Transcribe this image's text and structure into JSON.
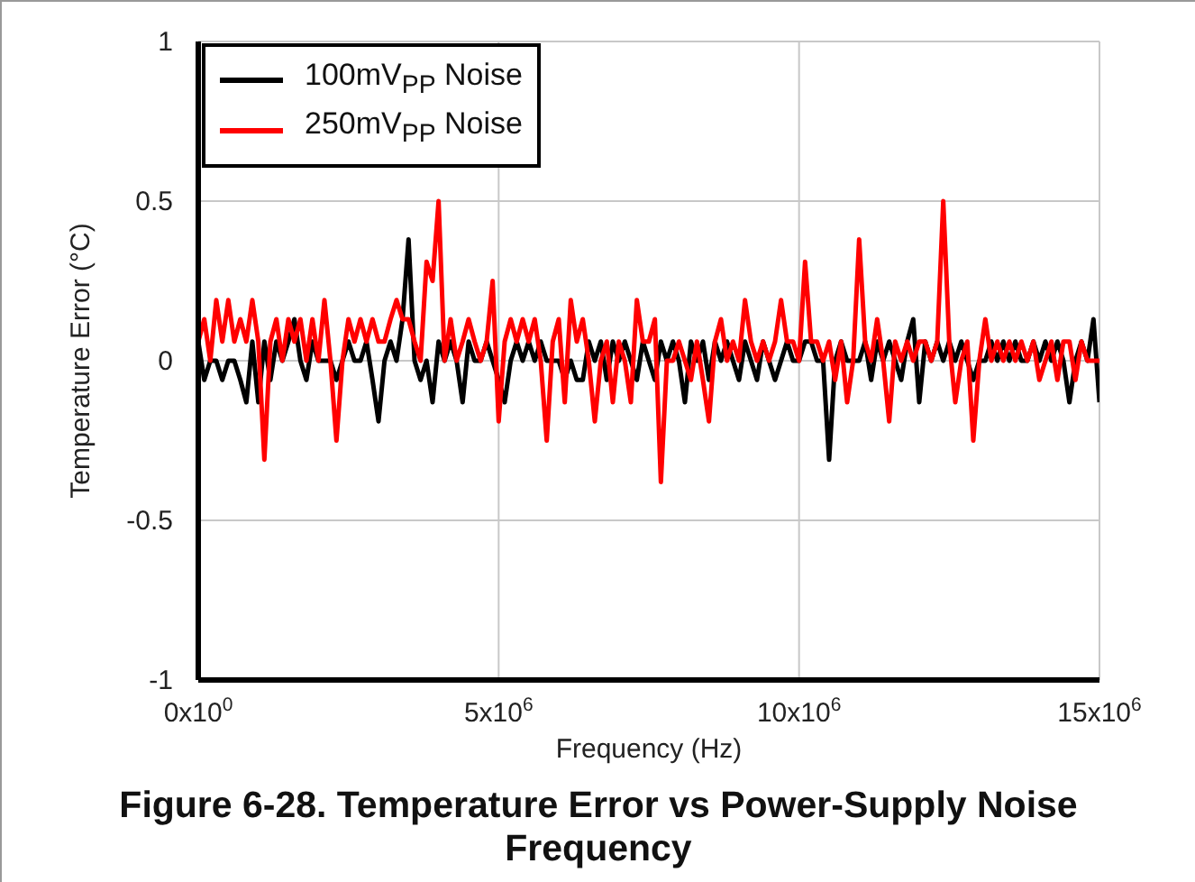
{
  "chart_data": {
    "type": "line",
    "title": "Figure 6-28. Temperature Error vs Power-Supply Noise Frequency",
    "xlabel": "Frequency (Hz)",
    "ylabel": "Temperature Error (°C)",
    "x": [
      0,
      100000,
      200000,
      300000,
      400000,
      500000,
      600000,
      700000,
      800000,
      900000,
      1000000,
      1100000,
      1200000,
      1300000,
      1400000,
      1500000,
      1600000,
      1700000,
      1800000,
      1900000,
      2000000,
      2100000,
      2200000,
      2300000,
      2400000,
      2500000,
      2600000,
      2700000,
      2800000,
      2900000,
      3000000,
      3100000,
      3200000,
      3300000,
      3400000,
      3500000,
      3600000,
      3700000,
      3800000,
      3900000,
      4000000,
      4100000,
      4200000,
      4300000,
      4400000,
      4500000,
      4600000,
      4700000,
      4800000,
      4900000,
      5000000,
      5100000,
      5200000,
      5300000,
      5400000,
      5500000,
      5600000,
      5700000,
      5800000,
      5900000,
      6000000,
      6100000,
      6200000,
      6300000,
      6400000,
      6500000,
      6600000,
      6700000,
      6800000,
      6900000,
      7000000,
      7100000,
      7200000,
      7300000,
      7400000,
      7500000,
      7600000,
      7700000,
      7800000,
      7900000,
      8000000,
      8100000,
      8200000,
      8300000,
      8400000,
      8500000,
      8600000,
      8700000,
      8800000,
      8900000,
      9000000,
      9100000,
      9200000,
      9300000,
      9400000,
      9500000,
      9600000,
      9700000,
      9800000,
      9900000,
      10000000,
      10100000,
      10200000,
      10300000,
      10400000,
      10500000,
      10600000,
      10700000,
      10800000,
      10900000,
      11000000,
      11100000,
      11200000,
      11300000,
      11400000,
      11500000,
      11600000,
      11700000,
      11800000,
      11900000,
      12000000,
      12100000,
      12200000,
      12300000,
      12400000,
      12500000,
      12600000,
      12700000,
      12800000,
      12900000,
      13000000,
      13100000,
      13200000,
      13300000,
      13400000,
      13500000,
      13600000,
      13700000,
      13800000,
      13900000,
      14000000,
      14100000,
      14200000,
      14300000,
      14400000,
      14500000,
      14600000,
      14700000,
      14800000,
      14900000,
      15000000
    ],
    "series": [
      {
        "name": "100mV$_{PP}$ Noise",
        "color": "#000000",
        "values": [
          0.06,
          -0.06,
          0,
          0,
          -0.06,
          0,
          0,
          -0.06,
          -0.13,
          0.06,
          -0.13,
          0.06,
          -0.06,
          0.06,
          0,
          0.06,
          0.13,
          0,
          -0.06,
          0.06,
          0,
          0,
          0,
          -0.06,
          0,
          0.06,
          0,
          0,
          0.06,
          -0.06,
          -0.19,
          0,
          0.06,
          0,
          0.13,
          0.38,
          0,
          -0.06,
          0,
          -0.13,
          0.06,
          0,
          0.06,
          0,
          -0.13,
          0.06,
          0,
          0,
          0.06,
          0,
          -0.06,
          -0.13,
          0,
          0.06,
          0,
          0.06,
          0,
          0.06,
          0,
          0,
          0,
          -0.06,
          0,
          -0.06,
          -0.06,
          0.06,
          0,
          0.06,
          -0.06,
          0.06,
          0,
          0.06,
          0,
          -0.06,
          0.06,
          0,
          -0.06,
          0.06,
          0,
          0.06,
          0,
          -0.13,
          0.06,
          0,
          0.06,
          -0.06,
          0.06,
          0,
          0.06,
          0,
          -0.06,
          0.06,
          0,
          -0.06,
          0.06,
          0,
          -0.06,
          0,
          0.06,
          0,
          0,
          0.06,
          0.06,
          0,
          0,
          -0.31,
          0,
          0.06,
          0,
          0,
          0,
          0.06,
          -0.06,
          0.06,
          0,
          0.06,
          0,
          -0.06,
          0.06,
          0.13,
          -0.13,
          0.06,
          0,
          0.06,
          0,
          0.06,
          0,
          0.06,
          0,
          -0.06,
          0,
          0,
          0.06,
          0,
          0.06,
          0,
          0.06,
          0,
          0,
          0.06,
          0,
          0.06,
          0,
          0.06,
          0,
          -0.13,
          0,
          0.06,
          0,
          0.13,
          -0.13
        ]
      },
      {
        "name": "250mV$_{PP}$ Noise",
        "color": "#ff0000",
        "values": [
          0.06,
          0.13,
          0,
          0.19,
          0.06,
          0.19,
          0.06,
          0.13,
          0.06,
          0.19,
          0.06,
          -0.31,
          0.06,
          0.13,
          0,
          0.13,
          0.06,
          0.13,
          0,
          0.13,
          0,
          0.19,
          0,
          -0.25,
          0,
          0.13,
          0.06,
          0.13,
          0.06,
          0.13,
          0.06,
          0.06,
          0.13,
          0.19,
          0.13,
          0.13,
          0.06,
          0,
          0.31,
          0.25,
          0.5,
          0,
          0.13,
          0,
          0.06,
          0.13,
          0.06,
          0,
          0.06,
          0.25,
          -0.19,
          0.06,
          0.13,
          0.06,
          0.13,
          0.06,
          0.13,
          0,
          -0.25,
          0.06,
          0.13,
          -0.13,
          0.19,
          0.06,
          0.13,
          0,
          -0.19,
          0,
          0.06,
          -0.13,
          0.06,
          0,
          -0.13,
          0.19,
          0.06,
          0.06,
          0.13,
          -0.38,
          0,
          0,
          0.06,
          0,
          -0.06,
          0.06,
          -0.06,
          -0.19,
          0.06,
          0.13,
          0,
          0.06,
          0,
          0.19,
          0.06,
          0,
          0.06,
          0,
          0.06,
          0.19,
          0.06,
          0.06,
          0,
          0.31,
          0.06,
          0.06,
          0,
          0.06,
          -0.06,
          0.06,
          -0.13,
          0,
          0.38,
          0.06,
          0,
          0.13,
          0,
          -0.19,
          0.06,
          0,
          0.06,
          0,
          0.06,
          0.06,
          0,
          0.06,
          0.5,
          0.06,
          -0.13,
          0,
          0.06,
          -0.25,
          0,
          0.13,
          0,
          0.06,
          0,
          0.06,
          0,
          0.06,
          0,
          0.06,
          -0.06,
          0,
          0.06,
          -0.06,
          0.06,
          0.06,
          -0.06,
          0.06,
          0,
          0,
          0
        ]
      }
    ],
    "xlim": [
      0,
      15000000
    ],
    "xticks": [
      {
        "value": 0,
        "label": "0x10$^{0}$"
      },
      {
        "value": 5000000,
        "label": "5x10$^{6}$"
      },
      {
        "value": 10000000,
        "label": "10x10$^{6}$"
      },
      {
        "value": 15000000,
        "label": "15x10$^{6}$"
      }
    ],
    "ylim": [
      -1,
      1
    ],
    "yticks": [
      -1,
      -0.5,
      0,
      0.5,
      1
    ],
    "grid": true,
    "legend": "top left"
  }
}
